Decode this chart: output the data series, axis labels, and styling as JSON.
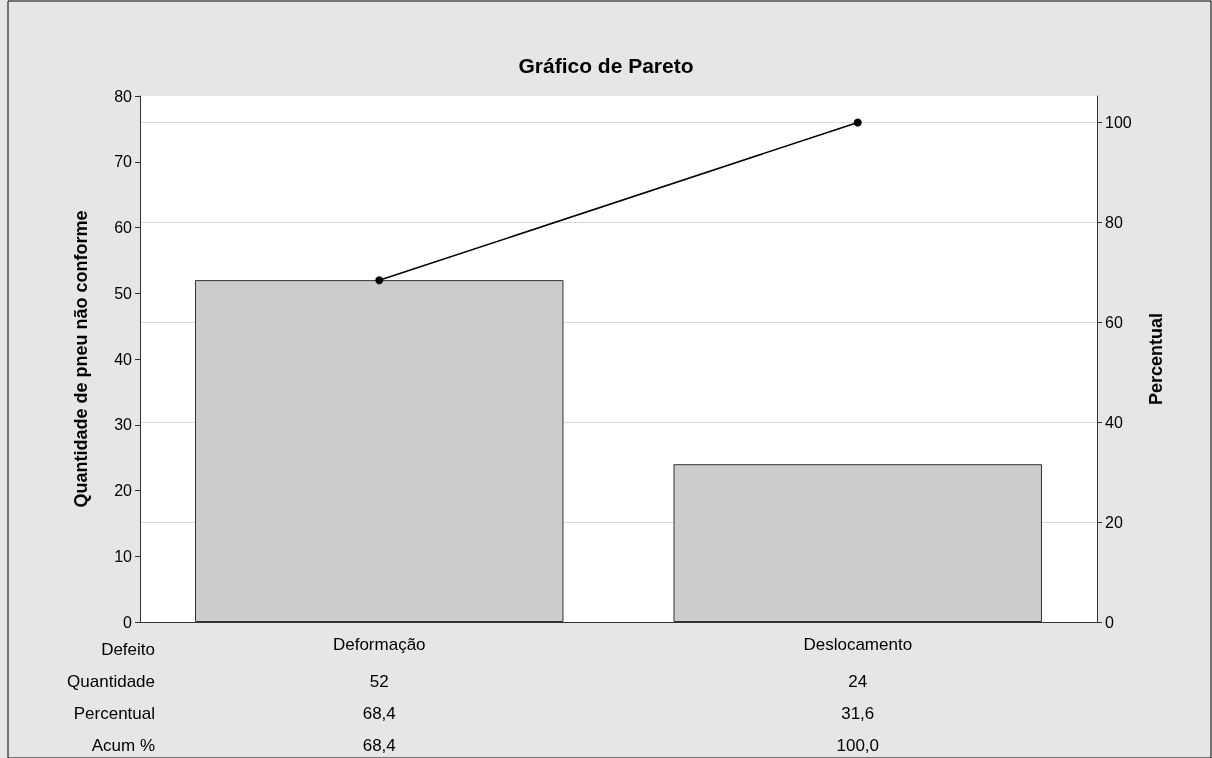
{
  "chart_data": {
    "type": "bar",
    "title": "Gráfico de Pareto",
    "xlabel": "Defeito",
    "ylabel": "Quantidade de pneu não conforme",
    "y2label": "Percentual",
    "categories": [
      "Deformação",
      "Deslocamento"
    ],
    "series": [
      {
        "color": "#cccccc",
        "values": [
          52,
          24
        ],
        "value_labels": [
          "52",
          "24"
        ]
      },
      {
        "type": "line",
        "axis": "y2",
        "color": "#000000",
        "marker": "circle",
        "values": [
          68.4,
          100
        ],
        "value_labels": [
          "68,4",
          "100,0"
        ]
      }
    ],
    "annotations": [
      "Quantidade",
      "Percentual",
      "Acum %",
      "68,4",
      "31,6"
    ],
    "ylim": [
      0,
      80
    ],
    "yticks": [
      0,
      10,
      20,
      30,
      40,
      50,
      60,
      70,
      80
    ],
    "y2lim": [
      0,
      105.3
    ],
    "y2ticks": [
      0,
      20,
      40,
      60,
      80,
      100
    ],
    "grid": "y2"
  }
}
